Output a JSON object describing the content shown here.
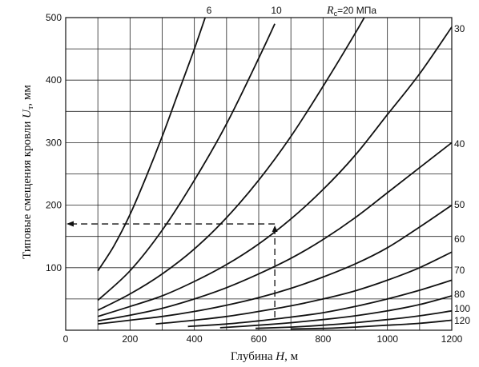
{
  "chart_data": {
    "type": "line",
    "title": "",
    "xlabel": "Глубина H, м",
    "ylabel": "Типовые смещения кровли Uт, мм",
    "xlim": [
      0,
      1200
    ],
    "ylim": [
      0,
      500
    ],
    "x_ticks": [
      "0",
      "200",
      "400",
      "600",
      "800",
      "1000",
      "1200"
    ],
    "y_ticks": [
      "100",
      "200",
      "300",
      "400",
      "500"
    ],
    "grid": true,
    "legend": "curve labels at line ends",
    "series": [
      {
        "name": "6",
        "x": [
          100,
          150,
          200,
          250,
          300,
          350,
          400,
          450
        ],
        "y": [
          95,
          135,
          185,
          245,
          310,
          380,
          450,
          525
        ]
      },
      {
        "name": "10",
        "x": [
          100,
          200,
          300,
          400,
          500,
          600,
          650
        ],
        "y": [
          48,
          95,
          160,
          240,
          330,
          435,
          490
        ]
      },
      {
        "name": "Rc=20 МПа",
        "x": [
          100,
          200,
          300,
          400,
          500,
          600,
          700,
          800,
          900,
          950
        ],
        "y": [
          32,
          58,
          90,
          130,
          180,
          240,
          310,
          390,
          475,
          520
        ]
      },
      {
        "name": "30",
        "x": [
          100,
          200,
          300,
          400,
          500,
          600,
          700,
          800,
          900,
          1000,
          1100,
          1200
        ],
        "y": [
          22,
          38,
          55,
          78,
          105,
          138,
          178,
          225,
          280,
          345,
          410,
          485
        ]
      },
      {
        "name": "40",
        "x": [
          100,
          200,
          300,
          400,
          500,
          600,
          700,
          800,
          900,
          1000,
          1100,
          1200
        ],
        "y": [
          15,
          24,
          35,
          50,
          68,
          90,
          115,
          145,
          180,
          220,
          260,
          300
        ]
      },
      {
        "name": "50",
        "x": [
          100,
          200,
          300,
          400,
          500,
          600,
          700,
          800,
          900,
          1000,
          1100,
          1200
        ],
        "y": [
          10,
          16,
          22,
          30,
          40,
          52,
          67,
          85,
          106,
          132,
          165,
          200
        ]
      },
      {
        "name": "60",
        "x": [
          280,
          400,
          500,
          600,
          700,
          800,
          900,
          1000,
          1100,
          1200
        ],
        "y": [
          10,
          16,
          22,
          30,
          39,
          50,
          63,
          80,
          100,
          125
        ]
      },
      {
        "name": "70",
        "x": [
          380,
          500,
          600,
          700,
          800,
          900,
          1000,
          1100,
          1200
        ],
        "y": [
          6,
          10,
          15,
          21,
          28,
          38,
          50,
          64,
          80
        ]
      },
      {
        "name": "80",
        "x": [
          480,
          600,
          700,
          800,
          900,
          1000,
          1100,
          1200
        ],
        "y": [
          4,
          8,
          12,
          17,
          23,
          31,
          41,
          55
        ]
      },
      {
        "name": "100",
        "x": [
          590,
          700,
          800,
          900,
          1000,
          1100,
          1200
        ],
        "y": [
          3,
          5,
          8,
          12,
          17,
          23,
          31
        ]
      },
      {
        "name": "120",
        "x": [
          700,
          800,
          900,
          1000,
          1100,
          1200
        ],
        "y": [
          2,
          3,
          5,
          8,
          11,
          16
        ]
      }
    ],
    "annotation": {
      "type": "dashed-guide",
      "x": 650,
      "y": 170,
      "arrows": [
        "up at x=650",
        "left at y=170"
      ]
    }
  },
  "axis_labels": {
    "x_prefix": "Глубина ",
    "x_var": "H",
    "x_suffix": ", м",
    "y_prefix": "Типовые смещения кровли ",
    "y_var": "U",
    "y_sub": "т",
    "y_suffix": ", мм"
  },
  "curve_labels": {
    "r_symbol": "R",
    "r_sub": "с",
    "r_value": "=20 МПа"
  }
}
